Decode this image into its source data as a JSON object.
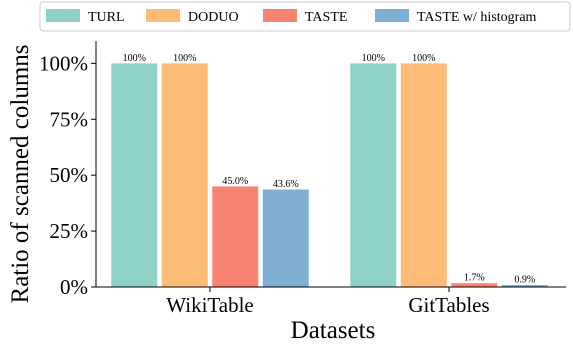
{
  "chart_data": {
    "type": "bar",
    "title": "",
    "xlabel": "Datasets",
    "ylabel": "Ratio of scanned columns",
    "categories": [
      "WikiTable",
      "GitTables"
    ],
    "series": [
      {
        "name": "TURL",
        "values": [
          100,
          100
        ],
        "labels": [
          "100%",
          "100%"
        ],
        "color": "#8fd1c8"
      },
      {
        "name": "DODUO",
        "values": [
          100,
          100
        ],
        "labels": [
          "100%",
          "100%"
        ],
        "color": "#fdbb78"
      },
      {
        "name": "TASTE",
        "values": [
          45.0,
          1.7
        ],
        "labels": [
          "45.0%",
          "1.7%"
        ],
        "color": "#f98372"
      },
      {
        "name": "TASTE w/ histogram",
        "values": [
          43.6,
          0.9
        ],
        "labels": [
          "43.6%",
          "0.9%"
        ],
        "color": "#7fb0d3"
      }
    ],
    "ylim": [
      0,
      110
    ],
    "yticks": [
      0,
      25,
      50,
      75,
      100
    ],
    "ytick_labels": [
      "0%",
      "25%",
      "50%",
      "75%",
      "100%"
    ],
    "grid": false,
    "legend_position": "top, above plot"
  }
}
